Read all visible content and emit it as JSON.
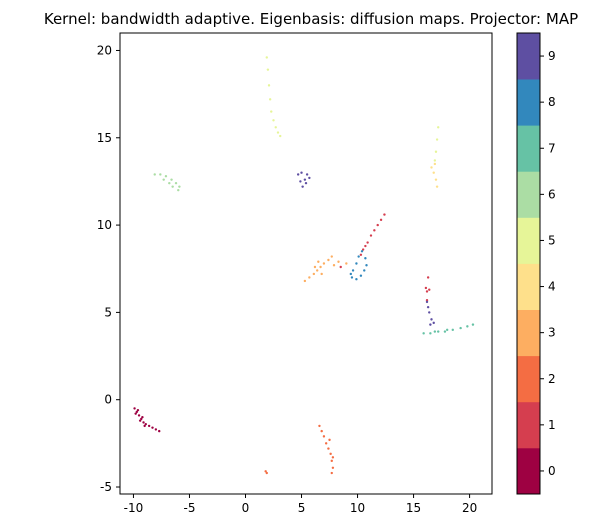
{
  "chart_data": {
    "type": "scatter",
    "title": "Kernel: bandwidth adaptive. Eigenbasis: diffusion maps. Projector: MAP",
    "xlabel": "",
    "ylabel": "",
    "xlim": [
      -11.2,
      22.0
    ],
    "ylim": [
      -5.4,
      21.0
    ],
    "xticks": [
      -10,
      -5,
      0,
      5,
      10,
      15,
      20
    ],
    "yticks": [
      -5,
      0,
      5,
      10,
      15,
      20
    ],
    "grid": false,
    "colorbar": {
      "ticks": [
        0,
        1,
        2,
        3,
        4,
        5,
        6,
        7,
        8,
        9
      ],
      "range": [
        -0.5,
        9.5
      ],
      "colors": [
        "#9e0142",
        "#d53e4f",
        "#f46d43",
        "#fdae61",
        "#fee08b",
        "#e6f598",
        "#abdda4",
        "#66c2a5",
        "#3288bd",
        "#5e4fa2"
      ]
    },
    "series": [
      {
        "label": 0,
        "points": [
          [
            -9.9,
            -0.5
          ],
          [
            -9.7,
            -0.7
          ],
          [
            -9.5,
            -0.9
          ],
          [
            -9.3,
            -1.1
          ],
          [
            -9.1,
            -1.3
          ],
          [
            -8.9,
            -1.4
          ],
          [
            -8.6,
            -1.5
          ],
          [
            -8.3,
            -1.6
          ],
          [
            -8.0,
            -1.7
          ],
          [
            -7.7,
            -1.8
          ],
          [
            -9.8,
            -0.8
          ],
          [
            -9.4,
            -1.2
          ],
          [
            -9.0,
            -1.5
          ],
          [
            -9.6,
            -0.6
          ],
          [
            -9.2,
            -1.0
          ]
        ]
      },
      {
        "label": 1,
        "points": [
          [
            10.5,
            8.6
          ],
          [
            10.9,
            9.0
          ],
          [
            11.2,
            9.4
          ],
          [
            11.5,
            9.7
          ],
          [
            11.8,
            10.0
          ],
          [
            12.1,
            10.3
          ],
          [
            12.4,
            10.6
          ],
          [
            10.3,
            8.3
          ],
          [
            10.7,
            8.8
          ],
          [
            16.2,
            6.2
          ],
          [
            16.4,
            6.3
          ],
          [
            16.1,
            6.4
          ],
          [
            16.3,
            7.0
          ],
          [
            16.2,
            5.7
          ],
          [
            8.5,
            7.6
          ]
        ]
      },
      {
        "label": 2,
        "points": [
          [
            6.6,
            -1.5
          ],
          [
            6.8,
            -1.8
          ],
          [
            7.0,
            -2.1
          ],
          [
            7.2,
            -2.5
          ],
          [
            7.4,
            -2.8
          ],
          [
            7.6,
            -3.1
          ],
          [
            7.7,
            -3.5
          ],
          [
            7.8,
            -3.9
          ],
          [
            7.7,
            -4.2
          ],
          [
            7.8,
            -3.3
          ],
          [
            1.8,
            -4.1
          ],
          [
            1.9,
            -4.2
          ],
          [
            7.5,
            -2.3
          ]
        ]
      },
      {
        "label": 3,
        "points": [
          [
            5.3,
            6.8
          ],
          [
            5.7,
            7.0
          ],
          [
            6.1,
            7.2
          ],
          [
            6.4,
            7.4
          ],
          [
            6.7,
            7.6
          ],
          [
            7.0,
            7.8
          ],
          [
            7.4,
            8.0
          ],
          [
            7.7,
            8.2
          ],
          [
            6.5,
            7.9
          ],
          [
            7.9,
            7.7
          ],
          [
            8.3,
            7.9
          ],
          [
            9.0,
            7.8
          ],
          [
            6.8,
            7.2
          ],
          [
            6.2,
            7.6
          ]
        ]
      },
      {
        "label": 4,
        "points": [
          [
            16.6,
            13.3
          ],
          [
            16.8,
            13.0
          ],
          [
            17.0,
            12.6
          ],
          [
            17.1,
            12.2
          ],
          [
            16.9,
            13.5
          ]
        ]
      },
      {
        "label": 5,
        "points": [
          [
            1.9,
            19.6
          ],
          [
            2.0,
            18.9
          ],
          [
            2.1,
            18.0
          ],
          [
            2.2,
            17.2
          ],
          [
            2.3,
            16.5
          ],
          [
            2.5,
            16.0
          ],
          [
            2.7,
            15.6
          ],
          [
            2.9,
            15.3
          ],
          [
            3.1,
            15.1
          ],
          [
            17.2,
            15.6
          ],
          [
            17.1,
            14.9
          ],
          [
            17.0,
            14.2
          ],
          [
            16.9,
            13.7
          ]
        ]
      },
      {
        "label": 6,
        "points": [
          [
            -8.1,
            12.9
          ],
          [
            -7.6,
            12.9
          ],
          [
            -7.1,
            12.8
          ],
          [
            -6.6,
            12.6
          ],
          [
            -6.2,
            12.4
          ],
          [
            -5.9,
            12.2
          ],
          [
            -6.8,
            12.4
          ],
          [
            -7.3,
            12.6
          ],
          [
            -6.0,
            12.0
          ],
          [
            -6.5,
            12.2
          ]
        ]
      },
      {
        "label": 7,
        "points": [
          [
            15.9,
            3.8
          ],
          [
            16.5,
            3.8
          ],
          [
            17.2,
            3.9
          ],
          [
            17.8,
            3.9
          ],
          [
            18.5,
            4.0
          ],
          [
            19.2,
            4.1
          ],
          [
            19.8,
            4.2
          ],
          [
            20.3,
            4.3
          ],
          [
            16.9,
            3.9
          ],
          [
            18.0,
            4.0
          ]
        ]
      },
      {
        "label": 8,
        "points": [
          [
            9.5,
            7.0
          ],
          [
            9.9,
            6.9
          ],
          [
            10.3,
            7.1
          ],
          [
            10.6,
            7.4
          ],
          [
            10.8,
            7.7
          ],
          [
            10.7,
            8.1
          ],
          [
            10.4,
            8.5
          ],
          [
            9.6,
            7.4
          ],
          [
            9.9,
            7.8
          ],
          [
            10.1,
            8.2
          ],
          [
            9.4,
            7.2
          ]
        ]
      },
      {
        "label": 9,
        "points": [
          [
            4.7,
            12.9
          ],
          [
            4.9,
            12.5
          ],
          [
            5.1,
            12.2
          ],
          [
            5.4,
            12.4
          ],
          [
            5.7,
            12.7
          ],
          [
            5.5,
            12.9
          ],
          [
            5.0,
            13.0
          ],
          [
            5.3,
            12.6
          ],
          [
            16.3,
            5.3
          ],
          [
            16.4,
            5.0
          ],
          [
            16.6,
            4.6
          ],
          [
            16.5,
            4.3
          ],
          [
            16.2,
            5.6
          ],
          [
            16.8,
            4.4
          ]
        ]
      }
    ]
  }
}
